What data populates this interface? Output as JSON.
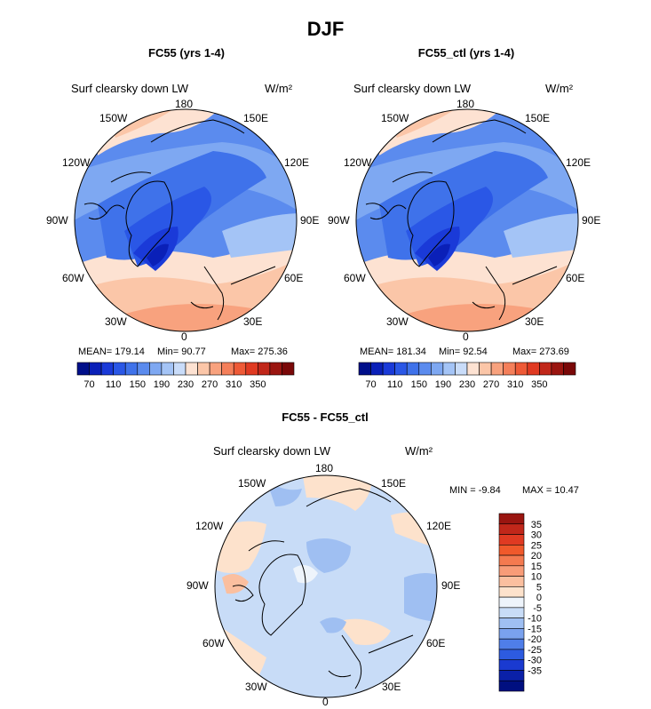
{
  "title": "DJF",
  "panels": {
    "p1": {
      "subtitle": "FC55 (yrs 1-4)",
      "variable": "Surf clearsky down LW",
      "units": "W/m²",
      "stats": {
        "mean": "MEAN= 179.14",
        "min": "Min=  90.77",
        "max": "Max= 275.36"
      }
    },
    "p2": {
      "subtitle": "FC55_ctl (yrs 1-4)",
      "variable": "Surf clearsky down LW",
      "units": "W/m²",
      "stats": {
        "mean": "MEAN= 181.34",
        "min": "Min=  92.54",
        "max": "Max= 273.69"
      }
    },
    "p3": {
      "subtitle": "FC55 - FC55_ctl",
      "variable": "Surf clearsky down LW",
      "units": "W/m²",
      "stats": {
        "min": "MIN =  -9.84",
        "max": "MAX =  10.47"
      }
    }
  },
  "chart_data": [
    {
      "type": "heatmap",
      "projection": "north polar stereographic",
      "title": "FC55 (yrs 1-4)",
      "variable": "Surf clearsky down LW",
      "units": "W/m2",
      "longitude_labels": [
        "180",
        "150E",
        "120E",
        "90E",
        "60E",
        "30E",
        "0",
        "30W",
        "60W",
        "90W",
        "120W",
        "150W"
      ],
      "colorbar_ticks": [
        70,
        110,
        150,
        190,
        230,
        270,
        310,
        350
      ],
      "colorbar_colors": [
        "#000f8a",
        "#0a20b8",
        "#1a3ad8",
        "#2a57e6",
        "#3f72ea",
        "#5b8bee",
        "#7ea8f2",
        "#a4c4f6",
        "#c9dcf9",
        "#fde2d2",
        "#fbc6a8",
        "#f8a27e",
        "#f47f5a",
        "#ee5a37",
        "#e03a22",
        "#c1271a",
        "#9a1510",
        "#7a0808"
      ],
      "mean": 179.14,
      "min": 90.77,
      "max": 275.36
    },
    {
      "type": "heatmap",
      "projection": "north polar stereographic",
      "title": "FC55_ctl (yrs 1-4)",
      "variable": "Surf clearsky down LW",
      "units": "W/m2",
      "longitude_labels": [
        "180",
        "150E",
        "120E",
        "90E",
        "60E",
        "30E",
        "0",
        "30W",
        "60W",
        "90W",
        "120W",
        "150W"
      ],
      "colorbar_ticks": [
        70,
        110,
        150,
        190,
        230,
        270,
        310,
        350
      ],
      "colorbar_colors": [
        "#000f8a",
        "#0a20b8",
        "#1a3ad8",
        "#2a57e6",
        "#3f72ea",
        "#5b8bee",
        "#7ea8f2",
        "#a4c4f6",
        "#c9dcf9",
        "#fde2d2",
        "#fbc6a8",
        "#f8a27e",
        "#f47f5a",
        "#ee5a37",
        "#e03a22",
        "#c1271a",
        "#9a1510",
        "#7a0808"
      ],
      "mean": 181.34,
      "min": 92.54,
      "max": 273.69
    },
    {
      "type": "heatmap",
      "projection": "north polar stereographic",
      "title": "FC55 - FC55_ctl",
      "variable": "Surf clearsky down LW",
      "units": "W/m2",
      "longitude_labels": [
        "180",
        "150E",
        "120E",
        "90E",
        "60E",
        "30E",
        "0",
        "30W",
        "60W",
        "90W",
        "120W",
        "150W"
      ],
      "colorbar_ticks": [
        35,
        30,
        25,
        20,
        15,
        10,
        5,
        0,
        -5,
        -10,
        -15,
        -20,
        -25,
        -30,
        -35
      ],
      "colorbar_colors": [
        "#9a1510",
        "#c1271a",
        "#e03a22",
        "#f0592b",
        "#f47a50",
        "#f89c78",
        "#fbbf9f",
        "#fde2cc",
        "#eef4fb",
        "#c8dcf7",
        "#9fbff2",
        "#7aa2ee",
        "#4f7ee9",
        "#2d5be0",
        "#1a3ad0",
        "#0a20a8",
        "#000f80"
      ],
      "min": -9.84,
      "max": 10.47
    }
  ]
}
